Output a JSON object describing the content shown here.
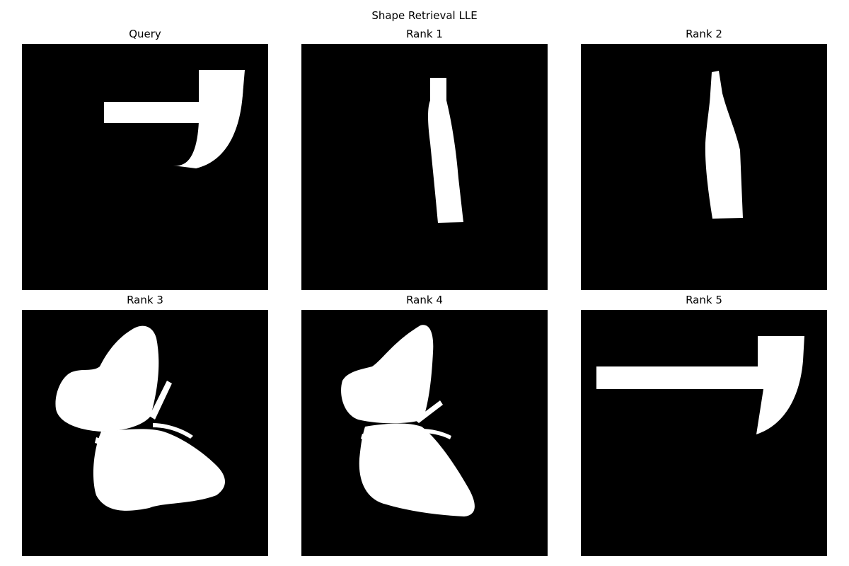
{
  "figure": {
    "title": "Shape Retrieval LLE"
  },
  "panels": [
    {
      "title": "Query",
      "shape": "hammer"
    },
    {
      "title": "Rank 1",
      "shape": "bottle"
    },
    {
      "title": "Rank 2",
      "shape": "bottle"
    },
    {
      "title": "Rank 3",
      "shape": "butterfly"
    },
    {
      "title": "Rank 4",
      "shape": "butterfly"
    },
    {
      "title": "Rank 5",
      "shape": "hammer"
    }
  ],
  "colors": {
    "background": "#000000",
    "shape": "#ffffff"
  }
}
